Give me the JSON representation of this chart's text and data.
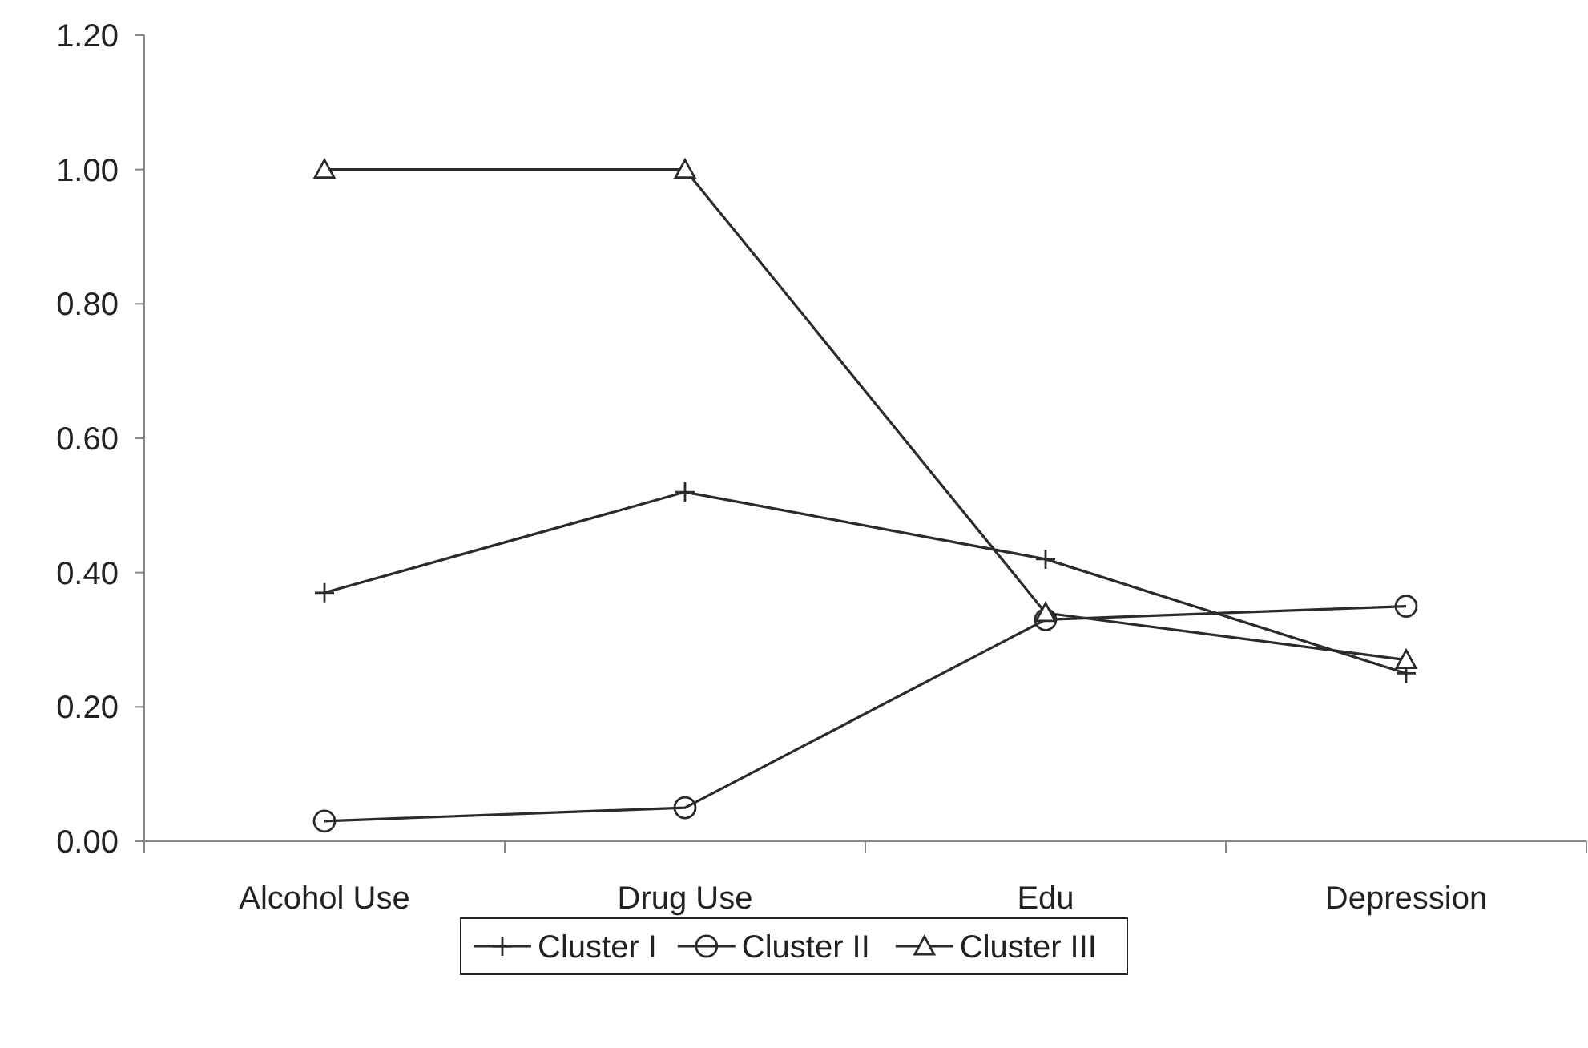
{
  "chart_data": {
    "type": "line",
    "categories": [
      "Alcohol Use",
      "Drug Use",
      "Edu",
      "Depression"
    ],
    "series": [
      {
        "name": "Cluster I",
        "color": "#2b2b2b",
        "marker": "cross",
        "values": [
          0.37,
          0.52,
          0.42,
          0.25
        ]
      },
      {
        "name": "Cluster II",
        "color": "#2b2b2b",
        "marker": "circle",
        "values": [
          0.03,
          0.05,
          0.33,
          0.35
        ]
      },
      {
        "name": "Cluster III",
        "color": "#2b2b2b",
        "marker": "triangle",
        "values": [
          1.0,
          1.0,
          0.34,
          0.27
        ]
      }
    ],
    "ylim": [
      0,
      1.2
    ],
    "yticks": [
      {
        "value": 0,
        "label": "0.00"
      },
      {
        "value": 0.2,
        "label": "0.20"
      },
      {
        "value": 0.4,
        "label": "0.40"
      },
      {
        "value": 0.6,
        "label": "0.60"
      },
      {
        "value": 0.8,
        "label": "0.80"
      },
      {
        "value": 1,
        "label": "1.00"
      },
      {
        "value": 1.2,
        "label": "1.20"
      }
    ],
    "grid": false,
    "legend": "bottom",
    "line_style": "solid"
  }
}
